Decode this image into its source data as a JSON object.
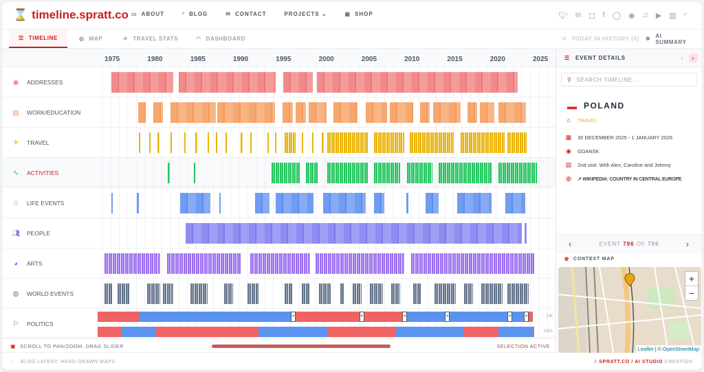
{
  "header": {
    "logo": "timeline.spratt.co",
    "nav": [
      {
        "label": "ABOUT",
        "icon": "chat-icon"
      },
      {
        "label": "BLOG",
        "icon": "rss-icon"
      },
      {
        "label": "CONTACT",
        "icon": "mail-icon"
      },
      {
        "label": "PROJECTS ⌄",
        "icon": ""
      },
      {
        "label": "SHOP",
        "icon": "bag-icon"
      }
    ],
    "social": [
      "twitter",
      "linkedin",
      "instagram",
      "facebook",
      "chat",
      "disc",
      "music",
      "youtube",
      "film",
      "rss"
    ]
  },
  "tabs": [
    {
      "label": "TIMELINE",
      "active": true
    },
    {
      "label": "MAP"
    },
    {
      "label": "TRAVEL STATS"
    },
    {
      "label": "DASHBOARD"
    }
  ],
  "toolbar": {
    "today": "TODAY IN HISTORY (0)",
    "ai": "AI SUMMARY"
  },
  "axis": {
    "years": [
      "1975",
      "1980",
      "1985",
      "1990",
      "1995",
      "2000",
      "2005",
      "2010",
      "2015",
      "2020",
      "2025"
    ]
  },
  "rows": [
    {
      "label": "ADDRESSES",
      "icon": "pin-icon",
      "color": "#f07878",
      "spans": [
        [
          1975.8,
          1983
        ],
        [
          1983.7,
          1995
        ],
        [
          1995.9,
          1999.3
        ],
        [
          1999.8,
          2023.2
        ]
      ]
    },
    {
      "label": "WORK/EDUCATION",
      "icon": "briefcase-icon",
      "color": "#f59a5a",
      "spans": [
        [
          1978.9,
          1979.8
        ],
        [
          1980.7,
          1981.8
        ],
        [
          1982.7,
          1988
        ],
        [
          1988.2,
          1994.9
        ],
        [
          1995.8,
          1997
        ],
        [
          1997.3,
          1998.5
        ],
        [
          1998.8,
          2000.9
        ],
        [
          2001.7,
          2004.5
        ],
        [
          2005.5,
          2008
        ],
        [
          2008.3,
          2011
        ],
        [
          2011.8,
          2013
        ],
        [
          2013.4,
          2016.6
        ],
        [
          2017.4,
          2018.5
        ],
        [
          2018.8,
          2020.5
        ],
        [
          2021,
          2024.2
        ]
      ]
    },
    {
      "label": "TRAVEL",
      "icon": "plane-icon",
      "color": "#eab308",
      "spans": [
        [
          1979,
          1979.2
        ],
        [
          1980.2,
          1980.4
        ],
        [
          1981.2,
          1981.4
        ],
        [
          1982.7,
          1982.9
        ],
        [
          1984.3,
          1984.5
        ],
        [
          1985.6,
          1985.8
        ],
        [
          1987,
          1987.2
        ],
        [
          1988,
          1988.2
        ],
        [
          1989.1,
          1989.3
        ],
        [
          1990.9,
          1991.1
        ],
        [
          1992,
          1992.2
        ],
        [
          1994,
          1994.2
        ],
        [
          1994.9,
          1995.1
        ],
        [
          1996,
          1997.3
        ],
        [
          1998,
          1998.2
        ],
        [
          1999.2,
          1999.4
        ],
        [
          2000.4,
          2000.6
        ],
        [
          2001,
          2005.8
        ],
        [
          2006.5,
          2010
        ],
        [
          2010.6,
          2015.8
        ],
        [
          2016.6,
          2021.7
        ],
        [
          2022,
          2024.3
        ]
      ],
      "striped": true
    },
    {
      "label": "ACTIVITIES",
      "icon": "activity-icon",
      "color": "#22c55e",
      "active": true,
      "spans": [
        [
          1982.4,
          1982.6
        ],
        [
          1985.4,
          1985.6
        ],
        [
          1994.5,
          1997.8
        ],
        [
          1998.5,
          2000
        ],
        [
          2001,
          2005.8
        ],
        [
          2006.5,
          2009.5
        ],
        [
          2010.3,
          2013.3
        ],
        [
          2014,
          2020.3
        ],
        [
          2021,
          2025.5
        ]
      ],
      "striped": true
    },
    {
      "label": "LIFE EVENTS",
      "icon": "star-icon",
      "color": "#5b8def",
      "spans": [
        [
          1975.8,
          1976
        ],
        [
          1978.8,
          1979
        ],
        [
          1983.8,
          1987.4
        ],
        [
          1988.4,
          1988.6
        ],
        [
          1992.6,
          1994.3
        ],
        [
          1995,
          1999.4
        ],
        [
          2000.5,
          2005.5
        ],
        [
          2006.5,
          2007.7
        ],
        [
          2010.2,
          2010.5
        ],
        [
          2012.5,
          2014
        ],
        [
          2016.2,
          2020.2
        ],
        [
          2021.8,
          2024.1
        ]
      ]
    },
    {
      "label": "PEOPLE",
      "icon": "people-icon",
      "color": "#7c7cf0",
      "spans": [
        [
          1984.5,
          2023.7
        ],
        [
          2024,
          2024.3
        ]
      ]
    },
    {
      "label": "ARTS",
      "icon": "palette-icon",
      "color": "#9b6ef0",
      "spans": [
        [
          1975,
          1981.5
        ],
        [
          1982.3,
          1991
        ],
        [
          1992,
          1999
        ],
        [
          1999.6,
          2010
        ],
        [
          2010.8,
          2025.2
        ]
      ],
      "striped": true
    },
    {
      "label": "WORLD EVENTS",
      "icon": "globe-icon",
      "color": "#64748b",
      "spans": [
        [
          1975,
          1976
        ],
        [
          1976.5,
          1978
        ],
        [
          1980,
          1981.5
        ],
        [
          1981.8,
          1983
        ],
        [
          1985,
          1987
        ],
        [
          1989,
          1990
        ],
        [
          1991.7,
          1993
        ],
        [
          1996,
          1997
        ],
        [
          1998,
          1999
        ],
        [
          2000,
          2001.5
        ],
        [
          2002.5,
          2003
        ],
        [
          2004,
          2005
        ],
        [
          2006,
          2007.5
        ],
        [
          2008.5,
          2009.5
        ],
        [
          2011,
          2012
        ],
        [
          2013.5,
          2016
        ],
        [
          2017,
          2018
        ],
        [
          2019,
          2021.5
        ],
        [
          2022,
          2024.5
        ]
      ],
      "striped": true
    }
  ],
  "politics": {
    "label": "POLITICS",
    "icon": "flag-icon",
    "uk_label": "UK",
    "usa_label": "USA",
    "red": "#ef6363",
    "blue": "#5b93f0",
    "uk": [
      [
        1974.2,
        1979,
        "red"
      ],
      [
        1979,
        1997,
        "blue"
      ],
      [
        1997,
        2010,
        "red"
      ],
      [
        2010,
        2024,
        "blue"
      ],
      [
        2024,
        2025,
        "red"
      ]
    ],
    "uk_markers": [
      1997,
      2005,
      2010,
      2015,
      2022.3,
      2024.2
    ],
    "usa": [
      [
        1974.2,
        1977,
        "red"
      ],
      [
        1977,
        1981,
        "blue"
      ],
      [
        1981,
        1993,
        "red"
      ],
      [
        1993,
        2001,
        "blue"
      ],
      [
        2001,
        2009,
        "red"
      ],
      [
        2009,
        2017,
        "blue"
      ],
      [
        2017,
        2021,
        "red"
      ],
      [
        2021,
        2025,
        "blue"
      ],
      [
        2025,
        2025.2,
        "red"
      ]
    ]
  },
  "footer": {
    "hint": "SCROLL TO PAN/ZOOM, DRAG SLIDER",
    "selection": "SELECTION ACTIVE",
    "blog": "BLOG LATEST: HAND-DRAWN MAPS",
    "credit_a": "A ",
    "credit_b": "SPRATT.CO / AI STUDIO",
    "credit_c": " CREATION"
  },
  "panel": {
    "title": "EVENT DETAILS",
    "search_placeholder": "SEARCH TIMELINE...",
    "event": {
      "name": "POLAND",
      "category": "TRAVEL",
      "category_color": "#eab308",
      "dates": "30 DECEMBER 2025 - 1 JANUARY 2026",
      "location": "GDANSK",
      "note": "2nd visit. With Alex, Caroline and Johnny",
      "link": "WIKIPEDIA: COUNTRY IN CENTRAL EUROPE"
    },
    "counter": {
      "prefix": "EVENT",
      "current": "796",
      "of": "OF",
      "total": "796"
    },
    "map_title": "CONTEXT MAP",
    "attribution": "Leaflet | © OpenStreetMap",
    "zoom_in": "+",
    "zoom_out": "−"
  }
}
